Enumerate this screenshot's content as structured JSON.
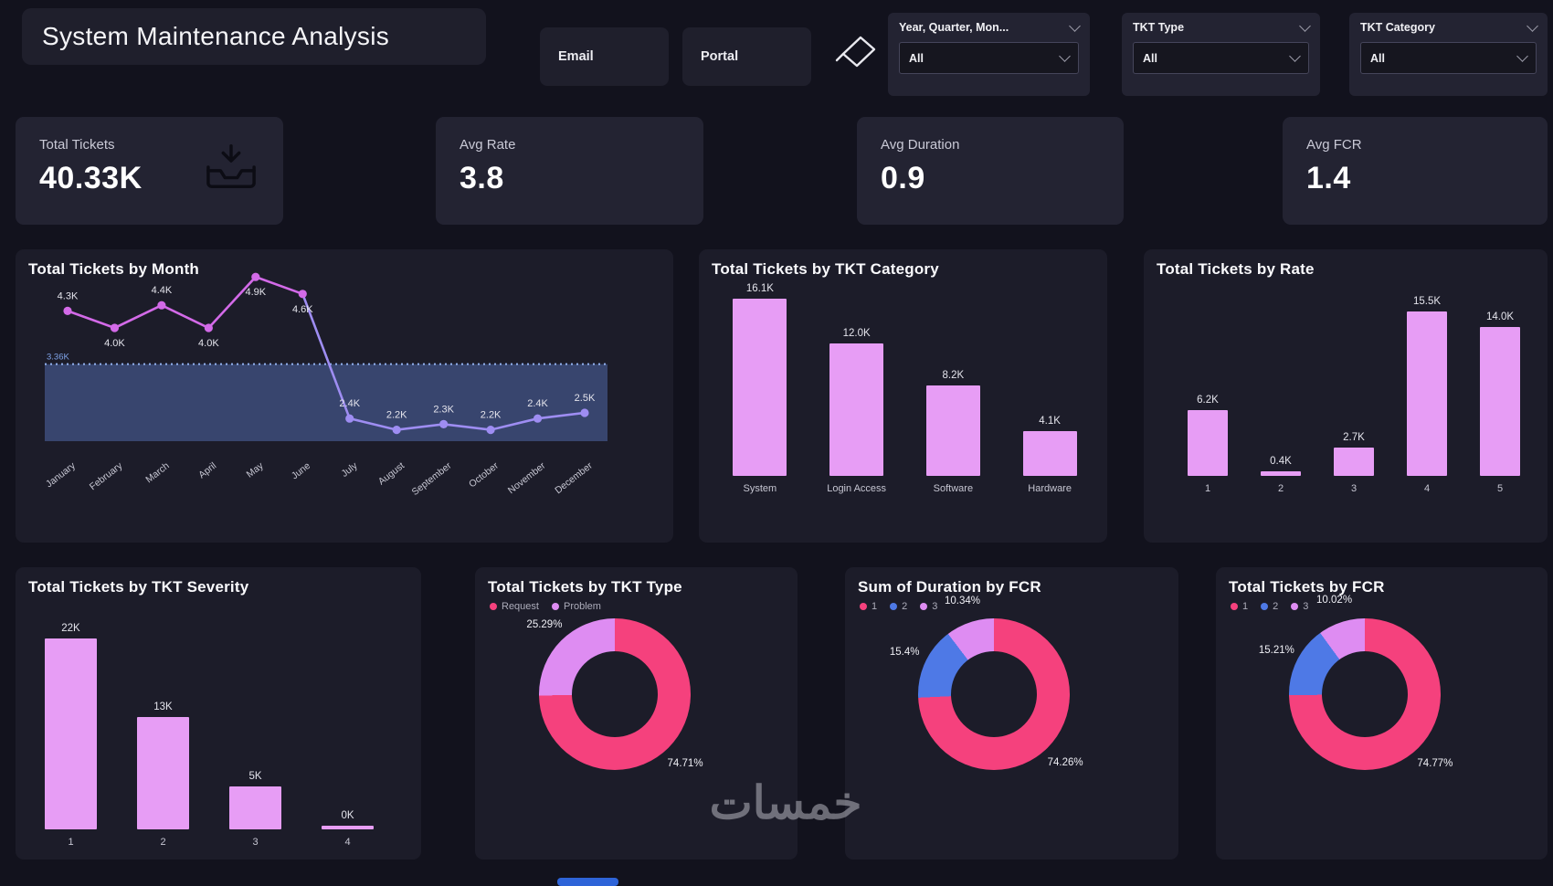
{
  "page": {
    "watermark": "خمسات",
    "colors": {
      "background": "#12121D",
      "card": "#1C1C29",
      "panel": "#232332",
      "bar": "#E79DF5",
      "pink": "#F5417D",
      "violet": "#DE8CF2",
      "blue": "#4E79E6",
      "line_early": "#D36AE8",
      "line_late": "#9E8DF2",
      "band_fill": "#5068A8",
      "band_edge": "#93B3F2",
      "band_label_color": "#7FA3E8",
      "scrollbar": "#2E64D8"
    }
  },
  "header": {
    "title": "System Maintenance Analysis",
    "email_button": "Email",
    "portal_button": "Portal",
    "filters": [
      {
        "label": "Year, Quarter, Mon...",
        "value": "All"
      },
      {
        "label": "TKT Type",
        "value": "All"
      },
      {
        "label": "TKT Category",
        "value": "All"
      }
    ]
  },
  "kpis": [
    {
      "label": "Total Tickets",
      "value": "40.33K"
    },
    {
      "label": "Avg Rate",
      "value": "3.8"
    },
    {
      "label": "Avg Duration",
      "value": "0.9"
    },
    {
      "label": "Avg FCR",
      "value": "1.4"
    }
  ],
  "chart_data": [
    {
      "type": "line",
      "title": "Total Tickets by Month",
      "categories": [
        "January",
        "February",
        "March",
        "April",
        "May",
        "June",
        "July",
        "August",
        "September",
        "October",
        "November",
        "December"
      ],
      "values": [
        4.3,
        4.0,
        4.4,
        4.0,
        4.9,
        4.6,
        2.4,
        2.2,
        2.3,
        2.2,
        2.4,
        2.5
      ],
      "labels": [
        "4.3K",
        "4.0K",
        "4.4K",
        "4.0K",
        "4.9K",
        "4.6K",
        "2.4K",
        "2.2K",
        "2.3K",
        "2.2K",
        "2.4K",
        "2.5K"
      ],
      "unit": "K",
      "ylim": [
        2.0,
        5.2
      ],
      "magenta_until_index": 5,
      "label_below_indices": [
        1,
        3,
        4,
        5
      ],
      "band": {
        "top": 3.36,
        "top_label": "3.36K"
      },
      "legend_position": "none",
      "grid": false
    },
    {
      "type": "bar",
      "title": "Total Tickets by TKT Category",
      "categories": [
        "System",
        "Login Access",
        "Software",
        "Hardware"
      ],
      "values": [
        16.1,
        12.0,
        8.2,
        4.1
      ],
      "labels": [
        "16.1K",
        "12.0K",
        "8.2K",
        "4.1K"
      ],
      "unit": "K",
      "ylim": [
        0,
        16.5
      ]
    },
    {
      "type": "bar",
      "title": "Total Tickets by Rate",
      "categories": [
        "1",
        "2",
        "3",
        "4",
        "5"
      ],
      "values": [
        6.2,
        0.4,
        2.7,
        15.5,
        14.0
      ],
      "labels": [
        "6.2K",
        "0.4K",
        "2.7K",
        "15.5K",
        "14.0K"
      ],
      "unit": "K",
      "ylim": [
        0,
        16
      ]
    },
    {
      "type": "bar",
      "title": "Total Tickets by TKT Severity",
      "categories": [
        "1",
        "2",
        "3",
        "4"
      ],
      "values": [
        22,
        13,
        5,
        0.4
      ],
      "labels": [
        "22K",
        "13K",
        "5K",
        "0K"
      ],
      "unit": "K",
      "ylim": [
        0,
        23
      ]
    },
    {
      "type": "pie",
      "title": "Total Tickets by TKT Type",
      "legend": [
        {
          "label": "Request",
          "color": "#F5417D"
        },
        {
          "label": "Problem",
          "color": "#DE8CF2"
        }
      ],
      "slices": [
        {
          "name": "Request",
          "value": 74.71,
          "label": "74.71%",
          "color": "#F5417D"
        },
        {
          "name": "Problem",
          "value": 25.29,
          "label": "25.29%",
          "color": "#DE8CF2"
        }
      ]
    },
    {
      "type": "pie",
      "title": "Sum of Duration by FCR",
      "legend": [
        {
          "label": "1",
          "color": "#F5417D"
        },
        {
          "label": "2",
          "color": "#4E79E6"
        },
        {
          "label": "3",
          "color": "#DE8CF2"
        }
      ],
      "slices": [
        {
          "name": "1",
          "value": 74.26,
          "label": "74.26%",
          "color": "#F5417D"
        },
        {
          "name": "2",
          "value": 15.4,
          "label": "15.4%",
          "color": "#4E79E6"
        },
        {
          "name": "3",
          "value": 10.34,
          "label": "10.34%",
          "color": "#DE8CF2"
        }
      ]
    },
    {
      "type": "pie",
      "title": "Total Tickets by FCR",
      "legend": [
        {
          "label": "1",
          "color": "#F5417D"
        },
        {
          "label": "2",
          "color": "#4E79E6"
        },
        {
          "label": "3",
          "color": "#DE8CF2"
        }
      ],
      "slices": [
        {
          "name": "1",
          "value": 74.77,
          "label": "74.77%",
          "color": "#F5417D"
        },
        {
          "name": "2",
          "value": 15.21,
          "label": "15.21%",
          "color": "#4E79E6"
        },
        {
          "name": "3",
          "value": 10.02,
          "label": "10.02%",
          "color": "#DE8CF2"
        }
      ]
    }
  ]
}
